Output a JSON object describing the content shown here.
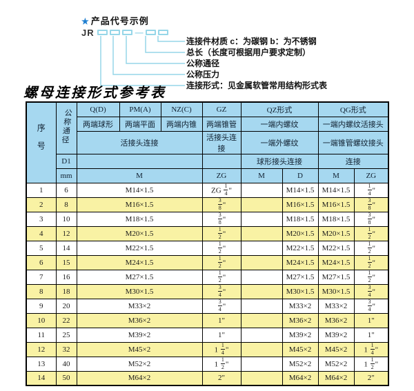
{
  "legend": {
    "star_icon": "★",
    "heading": "产品代号示例",
    "code_prefix": "JR",
    "dash": "—",
    "labels": [
      "连接件材质  c：为碳钢  b：为不锈钢",
      "总长（长度可根据用户要求定制）",
      "公称通径",
      "公称压力",
      "连接形式：见金属软管常用结构形式表"
    ]
  },
  "table": {
    "title": "螺母连接形式参考表",
    "colors": {
      "header_bg": "#a6d8f0",
      "alt_row_bg": "#f9f2a4",
      "row_bg": "#ffffff",
      "border": "#000000",
      "accent_blue": "#1e7ed0",
      "line_blue": "#96d6e8"
    },
    "header": {
      "seq": "序号",
      "dn": "公称通径",
      "d1": "D1",
      "mm": "mm",
      "qd": "Q(D)",
      "pm": "PM(A)",
      "nz": "NZ(C)",
      "gz": "GZ",
      "qz": "QZ形式",
      "qg": "QG形式",
      "qd_desc": "两端球形",
      "pm_desc": "两端平面",
      "nz_desc": "两端内锥",
      "gz_desc": "两端锥管",
      "qz_desc": "一端内螺纹",
      "qg_desc": "一端内螺纹活接头",
      "qpn_conn": "活接头连接",
      "gz_conn": "活接头连接",
      "qz_conn": "一端外螺纹",
      "qg_conn": "一端锥管螺纹接头",
      "qz_conn2": "球形接头连接",
      "qg_conn2": "连接",
      "m_unit": "M",
      "zg_unit": "ZG",
      "qz_m_unit": "M",
      "qz_d_unit": "D",
      "qg_m_unit": "M",
      "qg_zg_unit": "ZG"
    },
    "rows": [
      {
        "no": "1",
        "dn": "6",
        "m": "M14×1.5",
        "zg": "ZG 1/4\"",
        "qzm": "",
        "qzd": "M14×1.5",
        "qgm": "M14×1.5",
        "qgzg": "1/4\""
      },
      {
        "no": "2",
        "dn": "8",
        "m": "M16×1.5",
        "zg": "3/8\"",
        "qzm": "",
        "qzd": "M16×1.5",
        "qgm": "M16×1.5",
        "qgzg": "3/8\""
      },
      {
        "no": "3",
        "dn": "10",
        "m": "M18×1.5",
        "zg": "3/8\"",
        "qzm": "",
        "qzd": "M18×1.5",
        "qgm": "M18×1.5",
        "qgzg": "3/8\""
      },
      {
        "no": "4",
        "dn": "12",
        "m": "M20×1.5",
        "zg": "1/2\"",
        "qzm": "",
        "qzd": "M20×1.5",
        "qgm": "M20×1.5",
        "qgzg": "1/2\""
      },
      {
        "no": "5",
        "dn": "14",
        "m": "M22×1.5",
        "zg": "1/2\"",
        "qzm": "",
        "qzd": "M22×1.5",
        "qgm": "M22×1.5",
        "qgzg": "1/2\""
      },
      {
        "no": "6",
        "dn": "15",
        "m": "M24×1.5",
        "zg": "1/2\"",
        "qzm": "",
        "qzd": "M24×1.5",
        "qgm": "M24×1.5",
        "qgzg": "1/2\""
      },
      {
        "no": "7",
        "dn": "16",
        "m": "M27×1.5",
        "zg": "1/2\"",
        "qzm": "",
        "qzd": "M27×1.5",
        "qgm": "M27×1.5",
        "qgzg": "1/2\""
      },
      {
        "no": "8",
        "dn": "18",
        "m": "M30×1.5",
        "zg": "3/4\"",
        "qzm": "",
        "qzd": "M30×1.5",
        "qgm": "M30×1.5",
        "qgzg": "3/4\""
      },
      {
        "no": "9",
        "dn": "20",
        "m": "M33×2",
        "zg": "3/4\"",
        "qzm": "",
        "qzd": "M33×2",
        "qgm": "M33×2",
        "qgzg": "3/4\""
      },
      {
        "no": "10",
        "dn": "22",
        "m": "M36×2",
        "zg": "1\"",
        "qzm": "",
        "qzd": "M36×2",
        "qgm": "M36×2",
        "qgzg": "1\""
      },
      {
        "no": "11",
        "dn": "25",
        "m": "M39×2",
        "zg": "1\"",
        "qzm": "",
        "qzd": "M39×2",
        "qgm": "M39×2",
        "qgzg": "1\""
      },
      {
        "no": "12",
        "dn": "32",
        "m": "M45×2",
        "zg": "1 1/4\"",
        "qzm": "",
        "qzd": "M45×2",
        "qgm": "M45×2",
        "qgzg": "1 1/4\""
      },
      {
        "no": "13",
        "dn": "40",
        "m": "M52×2",
        "zg": "1 1/2\"",
        "qzm": "",
        "qzd": "M52×2",
        "qgm": "M52×2",
        "qgzg": "1 1/2\""
      },
      {
        "no": "14",
        "dn": "50",
        "m": "M64×2",
        "zg": "2\"",
        "qzm": "",
        "qzd": "M64×2",
        "qgm": "M64×2",
        "qgzg": "2\""
      }
    ]
  }
}
